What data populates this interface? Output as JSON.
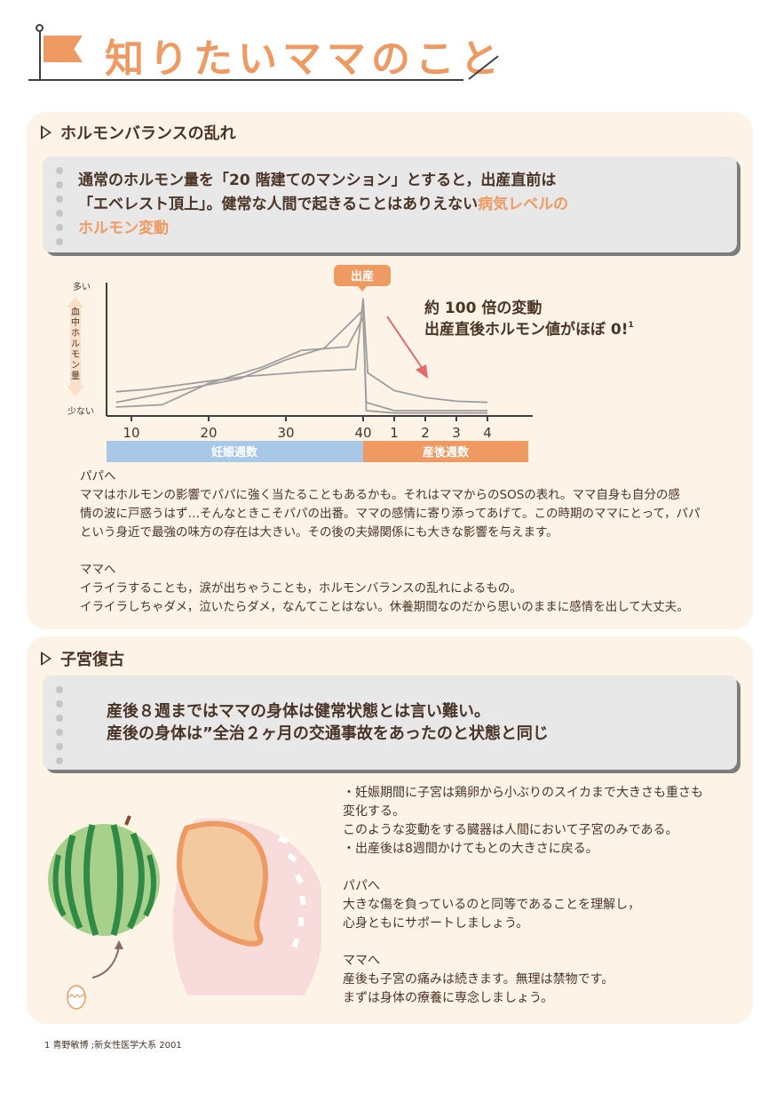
{
  "header": {
    "title": "知りたいママのこと"
  },
  "sections": [
    {
      "title": "ホルモンバランスの乱れ",
      "callout": {
        "line1": "通常のホルモン量を「20 階建てのマンション」とすると，出産直前は",
        "line2_a": "「エベレスト頂上」。健常な人間で起きることはありえない",
        "line2_b": "病気レベルの",
        "line3": "ホルモン変動"
      },
      "annotation": {
        "line1": "約 100 倍の変動",
        "line2": "出産直後ホルモン値がほぼ 0!",
        "footnote_mark": "1"
      },
      "papa": {
        "heading": "パパへ",
        "lines": [
          "ママはホルモンの影響でパパに強く当たることもあるかも。それはママからのSOSの表れ。ママ自身も自分の感",
          "情の波に戸惑うはず…そんなときこそパパの出番。ママの感情に寄り添ってあげて。この時期のママにとって，パパ",
          "という身近で最強の味方の存在は大きい。その後の夫婦関係にも大きな影響を与えます。"
        ]
      },
      "mama": {
        "heading": "ママへ",
        "lines": [
          "イライラすることも，涙が出ちゃうことも，ホルモンバランスの乱れによるもの。",
          "イライラしちゃダメ，泣いたらダメ，なんてことはない。休養期間なのだから思いのままに感情を出して大丈夫。"
        ]
      }
    },
    {
      "title": "子宮復古",
      "callout": {
        "line1": "産後８週まではママの身体は健常状態とは言い難い。",
        "line2": "産後の身体は”全治２ヶ月の交通事故をあったのと状態と同じ"
      },
      "notes": [
        "・妊娠期間に子宮は鶏卵から小ぶりのスイカまで大きさも重さも",
        "変化する。",
        "このような変動をする臓器は人間において子宮のみである。",
        "・出産後は8週間かけてもとの大きさに戻る。"
      ],
      "papa": {
        "heading": "パパへ",
        "lines": [
          "大きな傷を負っているのと同等であることを理解し，",
          "心身ともにサポートしましょう。"
        ]
      },
      "mama": {
        "heading": "ママへ",
        "lines": [
          "産後も子宮の痛みは続きます。無理は禁物です。",
          "まずは身体の療養に専念しましょう。"
        ]
      }
    }
  ],
  "chart_data": {
    "type": "line",
    "title": "",
    "ylabel": "血中ホルモン量",
    "y_top_label": "多い",
    "y_bottom_label": "少ない",
    "ylim": [
      0,
      100
    ],
    "peak_label": "出産",
    "x_ticks": [
      "10",
      "20",
      "30",
      "40",
      "1",
      "2",
      "3",
      "4"
    ],
    "phases": [
      {
        "label": "妊娠週数",
        "color": "#a9c8e8"
      },
      {
        "label": "産後週数",
        "color": "#ef9a63"
      }
    ],
    "x_positions": [
      "10",
      "20",
      "30",
      "40",
      "1",
      "2",
      "3",
      "4"
    ],
    "series": [
      {
        "points": [
          [
            8,
            19
          ],
          [
            12,
            21
          ],
          [
            20,
            28
          ],
          [
            25,
            32
          ],
          [
            33,
            36
          ],
          [
            39,
            38
          ],
          [
            40,
            98
          ],
          [
            40.6,
            35
          ],
          [
            1,
            20
          ],
          [
            2,
            14
          ],
          [
            3,
            11
          ],
          [
            4,
            10
          ]
        ]
      },
      {
        "points": [
          [
            8,
            6
          ],
          [
            14,
            8
          ],
          [
            20,
            26
          ],
          [
            27,
            40
          ],
          [
            32,
            54
          ],
          [
            38,
            57
          ],
          [
            40,
            82
          ],
          [
            40.4,
            10
          ],
          [
            1,
            3
          ],
          [
            2,
            3
          ],
          [
            3,
            3
          ],
          [
            4,
            3
          ]
        ]
      },
      {
        "points": [
          [
            8,
            10
          ],
          [
            16,
            20
          ],
          [
            24,
            30
          ],
          [
            30,
            46
          ],
          [
            35,
            56
          ],
          [
            40,
            88
          ],
          [
            40.4,
            3
          ],
          [
            1,
            1
          ],
          [
            2,
            1
          ],
          [
            3,
            1
          ],
          [
            4,
            1
          ]
        ]
      }
    ],
    "line_color": "#9e9e9e",
    "arrow_color": "#e06a6a"
  },
  "footnote": "1 青野敏博 ;新女性医学大系 2001",
  "icons": [
    "flag-icon",
    "watermelon-icon",
    "egg-icon",
    "uterus-icon",
    "arrow-icon"
  ]
}
